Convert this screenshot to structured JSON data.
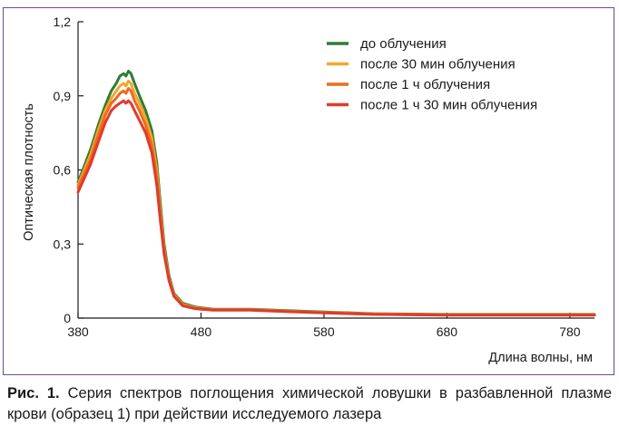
{
  "caption": {
    "label": "Рис. 1.",
    "text": " Серия спектров поглощения химической ловушки в разбавленной плазме крови (образец 1) при действии исследуемого лазера"
  },
  "chart_data": {
    "type": "line",
    "xlabel": "Длина волны, нм",
    "ylabel": "Оптическая плотность",
    "xlim": [
      380,
      800
    ],
    "ylim": [
      0,
      1.2
    ],
    "x_ticks": [
      "380",
      "480",
      "580",
      "680",
      "780"
    ],
    "y_ticks": [
      "0",
      "0,3",
      "0,6",
      "0,9",
      "1,2"
    ],
    "legend_position": "top-right",
    "series": [
      {
        "name": "до облучения",
        "color": "#2e7d32",
        "points": [
          [
            380,
            0.55
          ],
          [
            390,
            0.68
          ],
          [
            397,
            0.79
          ],
          [
            402,
            0.86
          ],
          [
            407,
            0.92
          ],
          [
            411,
            0.95
          ],
          [
            414,
            0.98
          ],
          [
            417,
            0.99
          ],
          [
            419,
            0.98
          ],
          [
            421,
            1.0
          ],
          [
            423,
            0.99
          ],
          [
            426,
            0.95
          ],
          [
            430,
            0.9
          ],
          [
            435,
            0.84
          ],
          [
            440,
            0.76
          ],
          [
            444,
            0.63
          ],
          [
            447,
            0.46
          ],
          [
            450,
            0.3
          ],
          [
            454,
            0.17
          ],
          [
            458,
            0.1
          ],
          [
            465,
            0.06
          ],
          [
            475,
            0.045
          ],
          [
            490,
            0.036
          ],
          [
            520,
            0.036
          ],
          [
            550,
            0.03
          ],
          [
            580,
            0.025
          ],
          [
            620,
            0.018
          ],
          [
            680,
            0.015
          ],
          [
            740,
            0.015
          ],
          [
            800,
            0.015
          ]
        ]
      },
      {
        "name": "после 30 мин облучения",
        "color": "#f4a62a",
        "points": [
          [
            380,
            0.54
          ],
          [
            390,
            0.66
          ],
          [
            397,
            0.77
          ],
          [
            402,
            0.84
          ],
          [
            407,
            0.89
          ],
          [
            411,
            0.92
          ],
          [
            414,
            0.94
          ],
          [
            417,
            0.95
          ],
          [
            419,
            0.94
          ],
          [
            421,
            0.96
          ],
          [
            423,
            0.95
          ],
          [
            426,
            0.91
          ],
          [
            430,
            0.87
          ],
          [
            435,
            0.81
          ],
          [
            440,
            0.73
          ],
          [
            444,
            0.6
          ],
          [
            447,
            0.43
          ],
          [
            450,
            0.28
          ],
          [
            454,
            0.16
          ],
          [
            458,
            0.095
          ],
          [
            465,
            0.055
          ],
          [
            475,
            0.042
          ],
          [
            490,
            0.034
          ],
          [
            520,
            0.034
          ],
          [
            550,
            0.028
          ],
          [
            580,
            0.023
          ],
          [
            620,
            0.017
          ],
          [
            680,
            0.014
          ],
          [
            740,
            0.014
          ],
          [
            800,
            0.014
          ]
        ]
      },
      {
        "name": "после 1 ч облучения",
        "color": "#ee6a1f",
        "points": [
          [
            380,
            0.53
          ],
          [
            390,
            0.64
          ],
          [
            397,
            0.75
          ],
          [
            402,
            0.82
          ],
          [
            407,
            0.87
          ],
          [
            411,
            0.89
          ],
          [
            414,
            0.91
          ],
          [
            417,
            0.92
          ],
          [
            419,
            0.91
          ],
          [
            421,
            0.93
          ],
          [
            423,
            0.92
          ],
          [
            426,
            0.88
          ],
          [
            430,
            0.84
          ],
          [
            435,
            0.78
          ],
          [
            440,
            0.7
          ],
          [
            444,
            0.57
          ],
          [
            447,
            0.41
          ],
          [
            450,
            0.27
          ],
          [
            454,
            0.155
          ],
          [
            458,
            0.09
          ],
          [
            465,
            0.052
          ],
          [
            475,
            0.04
          ],
          [
            490,
            0.033
          ],
          [
            520,
            0.033
          ],
          [
            550,
            0.027
          ],
          [
            580,
            0.022
          ],
          [
            620,
            0.016
          ],
          [
            680,
            0.013
          ],
          [
            740,
            0.013
          ],
          [
            800,
            0.013
          ]
        ]
      },
      {
        "name": "после 1 ч 30 мин облучения",
        "color": "#e03a2a",
        "points": [
          [
            380,
            0.51
          ],
          [
            390,
            0.62
          ],
          [
            397,
            0.72
          ],
          [
            402,
            0.79
          ],
          [
            407,
            0.84
          ],
          [
            411,
            0.86
          ],
          [
            414,
            0.87
          ],
          [
            417,
            0.88
          ],
          [
            419,
            0.87
          ],
          [
            421,
            0.88
          ],
          [
            423,
            0.87
          ],
          [
            426,
            0.84
          ],
          [
            430,
            0.8
          ],
          [
            435,
            0.75
          ],
          [
            440,
            0.67
          ],
          [
            444,
            0.54
          ],
          [
            447,
            0.39
          ],
          [
            450,
            0.26
          ],
          [
            454,
            0.15
          ],
          [
            458,
            0.088
          ],
          [
            465,
            0.05
          ],
          [
            475,
            0.038
          ],
          [
            490,
            0.032
          ],
          [
            520,
            0.032
          ],
          [
            550,
            0.026
          ],
          [
            580,
            0.021
          ],
          [
            620,
            0.015
          ],
          [
            680,
            0.012
          ],
          [
            740,
            0.012
          ],
          [
            800,
            0.012
          ]
        ]
      }
    ]
  }
}
